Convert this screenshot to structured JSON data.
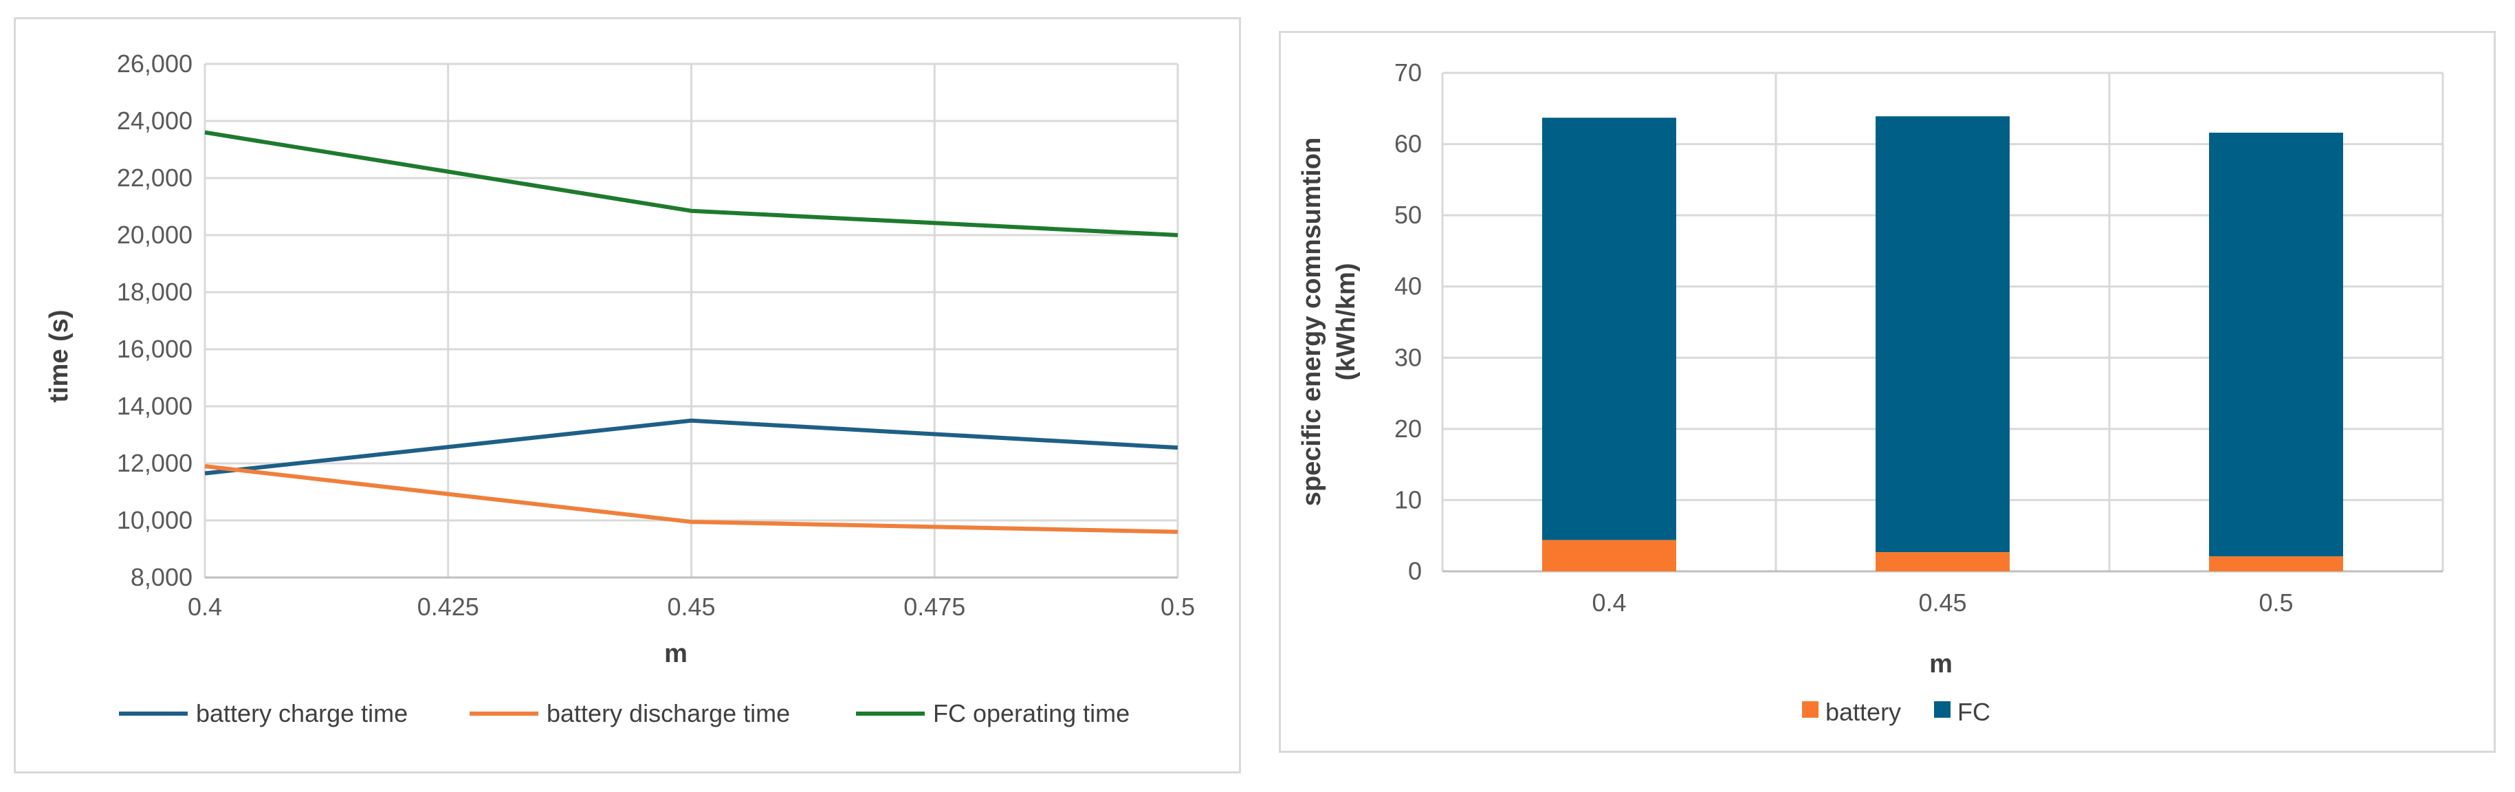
{
  "chart_data": [
    {
      "type": "line",
      "title": "",
      "xlabel": "m",
      "ylabel": "time (s)",
      "x": [
        0.4,
        0.45,
        0.5
      ],
      "xticks": [
        "0.4",
        "0.425",
        "0.45",
        "0.475",
        "0.5"
      ],
      "xlim": [
        0.4,
        0.5
      ],
      "ylim": [
        8000,
        26000
      ],
      "yticks": [
        "8,000",
        "10,000",
        "12,000",
        "14,000",
        "16,000",
        "18,000",
        "20,000",
        "22,000",
        "24,000",
        "26,000"
      ],
      "grid": true,
      "legend_position": "bottom",
      "series": [
        {
          "name": "battery charge time",
          "color": "#1f5f86",
          "values": [
            11650,
            13500,
            12550
          ]
        },
        {
          "name": "battery discharge time",
          "color": "#f07f3c",
          "values": [
            11900,
            9950,
            9600
          ]
        },
        {
          "name": "FC operating time",
          "color": "#1e7a2e",
          "values": [
            23600,
            20850,
            20000
          ]
        }
      ]
    },
    {
      "type": "bar",
      "stacked": true,
      "title": "",
      "xlabel": "m",
      "ylabel": "specific energy comnsumtion (kWh/km)",
      "ylabel_lines": [
        "specific energy comnsumtion",
        "(kWh/km)"
      ],
      "categories": [
        "0.4",
        "0.45",
        "0.5"
      ],
      "ylim": [
        0,
        70
      ],
      "yticks": [
        "0",
        "10",
        "20",
        "30",
        "40",
        "50",
        "60",
        "70"
      ],
      "grid": true,
      "legend_position": "bottom",
      "series": [
        {
          "name": "battery",
          "color": "#f8792d",
          "values": [
            4.4,
            2.7,
            2.1
          ]
        },
        {
          "name": "FC",
          "color": "#005f86",
          "values": [
            59.3,
            61.2,
            59.5
          ]
        }
      ]
    }
  ]
}
